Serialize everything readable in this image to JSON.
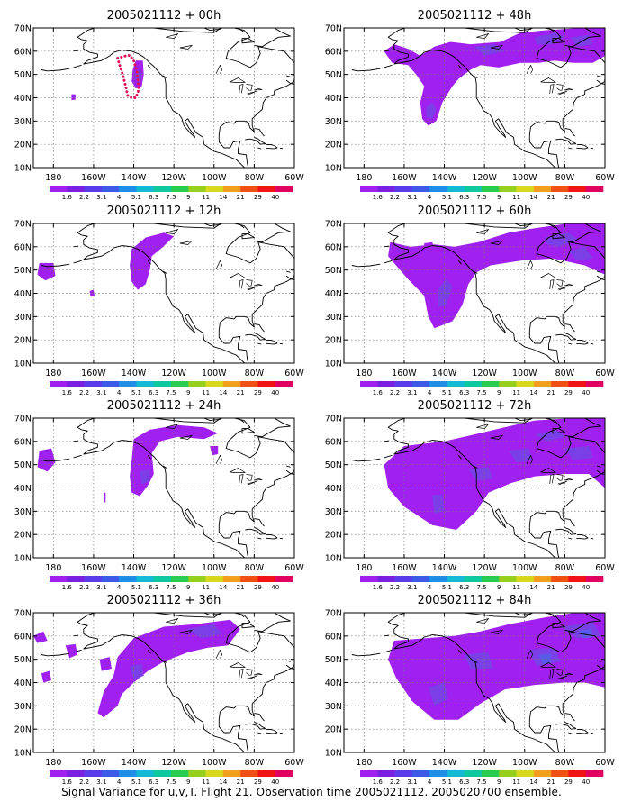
{
  "caption": "Signal Variance for u,v,T. Flight 21. Observation time 2005021112. 2005020700 ensemble.",
  "lon_labels": [
    "180",
    "160W",
    "140W",
    "120W",
    "100W",
    "80W",
    "60W"
  ],
  "lat_labels": [
    "10N",
    "20N",
    "30N",
    "40N",
    "50N",
    "60N",
    "70N"
  ],
  "colorbar_labels": [
    "1.6",
    "2.2",
    "3.1",
    "4",
    "5.1",
    "6.3",
    "7.5",
    "9",
    "11",
    "14",
    "21",
    "29",
    "40"
  ],
  "colorbar_colors": [
    "#a020f0",
    "#7b1fe0",
    "#5a3ce8",
    "#3c5ae6",
    "#1f8ee6",
    "#14b9d2",
    "#10c8a0",
    "#28cd50",
    "#96d01e",
    "#d8d81e",
    "#f0a01e",
    "#f05014",
    "#f01414",
    "#e00060"
  ],
  "fill_colors": {
    "level1": "#a020f0",
    "level2": "#7b3fe8",
    "level3": "#5a5aea"
  },
  "observation_marker_color": "#e0105a",
  "panels": [
    {
      "title": "2005021112 + 00h"
    },
    {
      "title": "2005021112 + 48h"
    },
    {
      "title": "2005021112 + 12h"
    },
    {
      "title": "2005021112 + 60h"
    },
    {
      "title": "2005021112 + 24h"
    },
    {
      "title": "2005021112 + 72h"
    },
    {
      "title": "2005021112 + 36h"
    },
    {
      "title": "2005021112 + 84h"
    }
  ]
}
